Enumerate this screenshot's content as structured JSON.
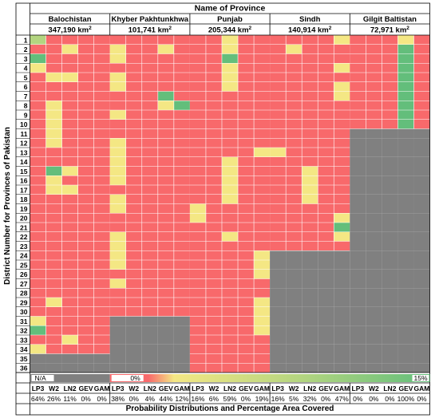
{
  "chart_data": {
    "type": "heatmap",
    "title": "Name of Province",
    "ylabel": "District Number for Provinces of Pakistan",
    "xlabel": "Probability Distributions and Percentage Area Covered",
    "legend": {
      "na_label": "N/A",
      "min_label": "0%",
      "max_label": "15%"
    },
    "colors": {
      "red": "#f8696b",
      "yellow": "#f4e784",
      "green": "#63be7b",
      "na": "#808080",
      "grid": "#ffffff"
    },
    "provinces": [
      {
        "name": "Balochistan",
        "area": "347,190",
        "districts": 34,
        "distributions": [
          "LP3",
          "W2",
          "LN2",
          "GEV",
          "GAM"
        ],
        "percents": [
          "64%",
          "26%",
          "11%",
          "0%",
          "0%"
        ],
        "cells": [
          "1RRRR",
          "RRYRR",
          "GRRRR",
          "YRRRR",
          "RYYRR",
          "RRRRR",
          "RRRRR",
          "RYRRR",
          "RYRRR",
          "RYRRR",
          "RYRRR",
          "RYRRR",
          "RRRRR",
          "RRRRR",
          "RGYRR",
          "RYRRR",
          "RYYRR",
          "RRRRR",
          "RRRRR",
          "RRRRR",
          "RRRRR",
          "RRRRR",
          "RRRRR",
          "RRRRR",
          "RRRRR",
          "RRRRR",
          "RRRRR",
          "RRRRR",
          "RYRRR",
          "RRRRR",
          "YRRRR",
          "GRRRR",
          "RRYRR",
          "YRRRR"
        ]
      },
      {
        "name": "Khyber Pakhtunkhwa",
        "area": "101,741",
        "districts": 30,
        "distributions": [
          "LP3",
          "W2",
          "LN2",
          "GEV",
          "GAM"
        ],
        "percents": [
          "38%",
          "0%",
          "4%",
          "44%",
          "12%"
        ],
        "cells": [
          "RRRRR",
          "YRRYR",
          "YRRRR",
          "RRRRR",
          "YRRRR",
          "YRRRR",
          "RRRGR",
          "RRRYG",
          "YRRRR",
          "RRRRR",
          "RRRRR",
          "YRRRR",
          "YRRRR",
          "YRRRR",
          "YRRRR",
          "YRRRR",
          "RRRRR",
          "YRRRR",
          "YRRRR",
          "RRRRR",
          "RRRRR",
          "YRRRR",
          "YRRRR",
          "YRRRR",
          "YRRRR",
          "RRRRR",
          "YRRRR",
          "RRRRR",
          "RRRRR",
          "RRRRR"
        ]
      },
      {
        "name": "Punjab",
        "area": "205,344",
        "districts": 36,
        "distributions": [
          "LP3",
          "W2",
          "LN2",
          "GEV",
          "GAM"
        ],
        "percents": [
          "16%",
          "6%",
          "59%",
          "0%",
          "19%"
        ],
        "cells": [
          "RRYRR",
          "RRYRR",
          "RRGRR",
          "RRYRR",
          "RRYRR",
          "RRYRR",
          "RRRRR",
          "RRRRR",
          "RRRRR",
          "RRRRR",
          "RRRRR",
          "RRRRR",
          "RRRRY",
          "RRYRR",
          "RRYRR",
          "RRYRR",
          "RRYRR",
          "RRYRR",
          "YRRRR",
          "YRRRR",
          "RRRRR",
          "RRYRR",
          "RRRRR",
          "RRRRY",
          "RRRRY",
          "RRRRY",
          "RRRRR",
          "RRRRR",
          "RRRRY",
          "RRRRY",
          "RRRRY",
          "RRRRY",
          "RRRRR",
          "RRRRR",
          "RRRRR",
          "RRRRR"
        ]
      },
      {
        "name": "Sindh",
        "area": "140,914",
        "districts": 23,
        "distributions": [
          "LP3",
          "W2",
          "LN2",
          "GEV",
          "GAM"
        ],
        "percents": [
          "16%",
          "5%",
          "32%",
          "0%",
          "47%"
        ],
        "cells": [
          "RRRRY",
          "RYRRR",
          "RRRRR",
          "RRRRY",
          "RRRRR",
          "RRRRY",
          "RRRRY",
          "RRRRR",
          "RRRRR",
          "RRRRR",
          "RRRRR",
          "RRRRR",
          "YRRRR",
          "RRRRR",
          "RRYRR",
          "RRYRR",
          "RRYRR",
          "RRYRR",
          "RRRRR",
          "RRRRY",
          "RRRRG",
          "RRRRY",
          "RRRRR"
        ]
      },
      {
        "name": "Gilgit Baltistan",
        "area": "72,971",
        "districts": 10,
        "distributions": [
          "LP3",
          "W2",
          "LN2",
          "GEV",
          "GAM"
        ],
        "percents": [
          "0%",
          "0%",
          "0%",
          "100%",
          "0%"
        ],
        "cells": [
          "RRRYR",
          "RRRGR",
          "RRRGR",
          "RRRGR",
          "RRRGR",
          "RRRGR",
          "RRRGR",
          "RRRGR",
          "RRRGR",
          "RRRGR"
        ]
      }
    ]
  }
}
